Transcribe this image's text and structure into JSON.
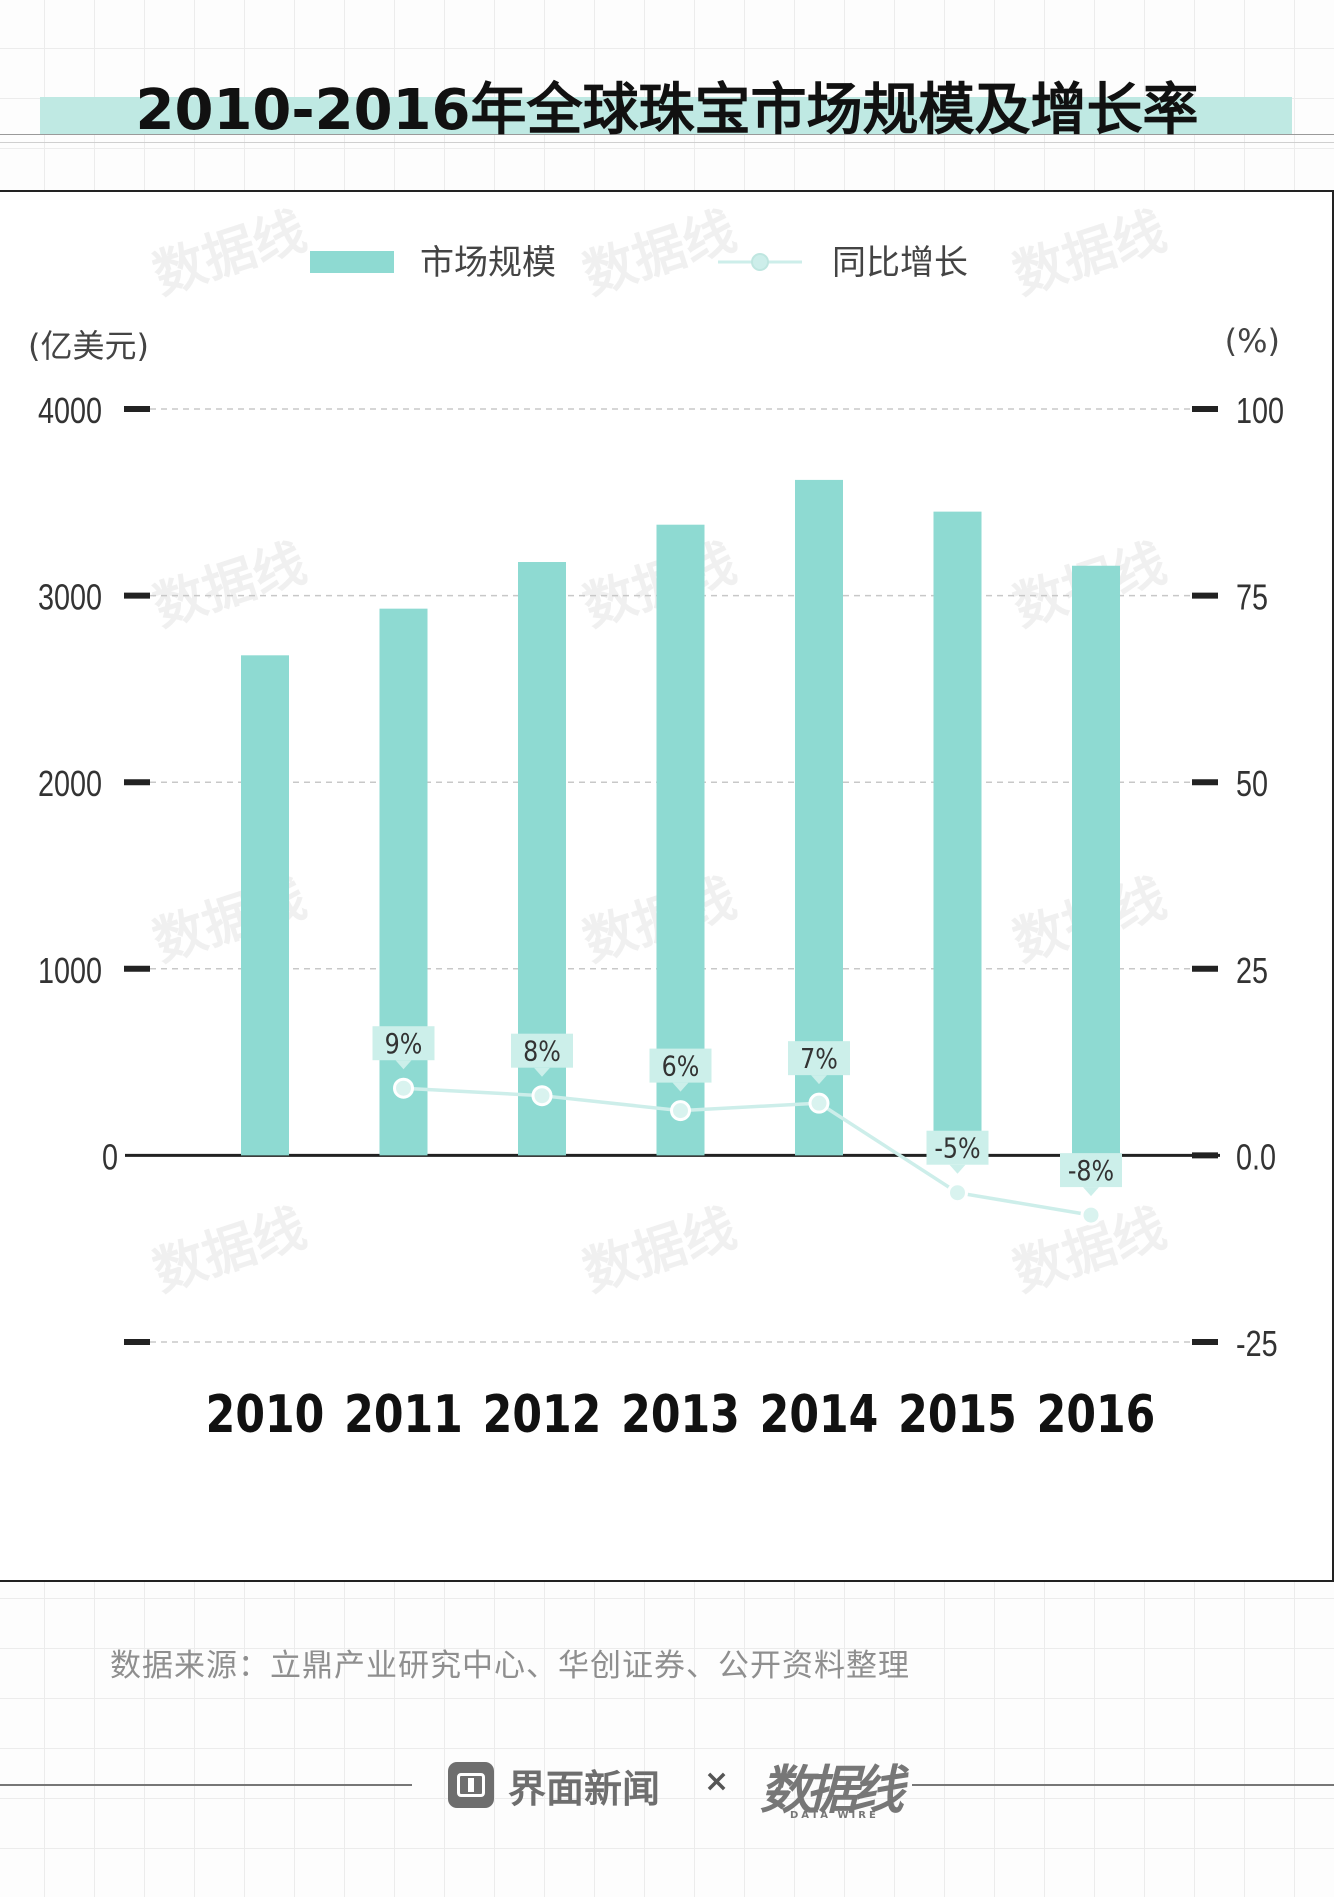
{
  "title": "2010-2016年全球珠宝市场规模及增长率",
  "source": "数据来源：立鼎产业研究中心、华创证券、公开资料整理",
  "footer": {
    "brand_name": "界面新闻",
    "separator": "×",
    "logo_text": "数据线",
    "logo_sub": "DATA WIRE"
  },
  "colors": {
    "bar": "#8edad2",
    "line": "#cdeeea",
    "label_bg": "#ccefea",
    "axis": "#222222",
    "grid": "#c8c8c8"
  },
  "chart_data": {
    "type": "bar",
    "categories": [
      "2010",
      "2011",
      "2012",
      "2013",
      "2014",
      "2015",
      "2016"
    ],
    "series": [
      {
        "name": "市场规模",
        "type": "bar",
        "axis": "left",
        "values": [
          2680,
          2930,
          3180,
          3380,
          3620,
          3450,
          3160
        ]
      },
      {
        "name": "同比增长",
        "type": "line",
        "axis": "right",
        "values": [
          null,
          9,
          8,
          6,
          7,
          -5,
          -8
        ],
        "labels": [
          "",
          "9%",
          "8%",
          "6%",
          "7%",
          "-5%",
          "-8%"
        ]
      }
    ],
    "left_axis": {
      "label": "(亿美元)",
      "range": [
        -1000,
        4000
      ],
      "ticks": [
        4000,
        3000,
        2000,
        1000,
        0
      ],
      "tick_labels": [
        "4000",
        "3000",
        "2000",
        "1000",
        "0"
      ]
    },
    "right_axis": {
      "label": "(%)",
      "range": [
        -25,
        100
      ],
      "ticks": [
        100,
        75,
        50,
        25,
        0,
        -25
      ],
      "tick_labels": [
        "100",
        "75",
        "50",
        "25",
        "0.0",
        "-25"
      ]
    },
    "grid": true,
    "legend": "top-center",
    "watermark": "数据线"
  }
}
